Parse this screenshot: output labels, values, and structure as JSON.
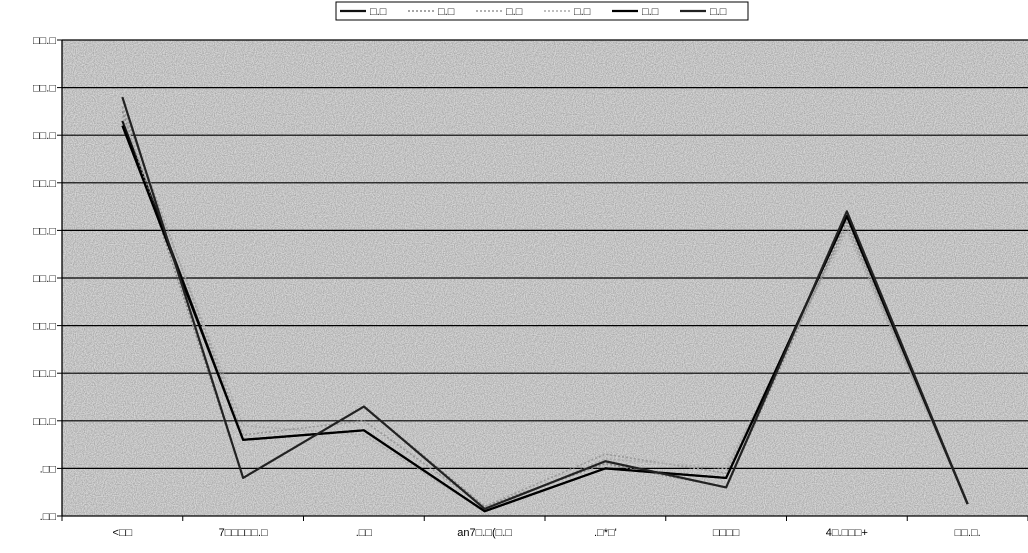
{
  "chart_data": {
    "type": "line",
    "title": "",
    "xlabel": "",
    "ylabel": "",
    "categories": [
      "<□□",
      "7□□□□□.□",
      ".□□",
      "an7□.□(□.□",
      ".□*□'",
      "□□□□",
      "4□.□□□+",
      "□□.□."
    ],
    "y_tick_labels": [
      ".□□",
      ".□□",
      "□□.□",
      "□□.□",
      "□□.□",
      "□□.□",
      "□□.□",
      "□□.□",
      "□□.□",
      "□□.□",
      "□□.□"
    ],
    "ylim": [
      0,
      10
    ],
    "grid": true,
    "legend": {
      "position": "top",
      "entries": [
        "□.□",
        "□.□",
        "□.□",
        "□.□",
        "□.□",
        "□.□"
      ]
    },
    "series": [
      {
        "name": "□.□",
        "color": "#111111",
        "style": "solid",
        "values": [
          8.3,
          1.6,
          1.8,
          0.1,
          1.0,
          0.8,
          6.3,
          0.25
        ]
      },
      {
        "name": "□.□",
        "color": "#888888",
        "style": "dotted",
        "values": [
          8.5,
          0.8,
          2.3,
          0.2,
          1.1,
          0.6,
          6.2,
          0.25
        ]
      },
      {
        "name": "□.□",
        "color": "#999999",
        "style": "dotted",
        "values": [
          8.6,
          1.7,
          2.0,
          0.2,
          1.3,
          0.9,
          6.1,
          0.25
        ]
      },
      {
        "name": "□.□",
        "color": "#aaaaaa",
        "style": "dotted",
        "values": [
          8.4,
          1.9,
          1.7,
          0.1,
          1.2,
          1.0,
          6.0,
          0.25
        ]
      },
      {
        "name": "□.□",
        "color": "#000000",
        "style": "solid",
        "values": [
          8.2,
          1.6,
          1.8,
          0.1,
          1.0,
          0.8,
          6.3,
          0.25
        ]
      },
      {
        "name": "□.□",
        "color": "#222222",
        "style": "solid",
        "values": [
          8.8,
          0.8,
          2.3,
          0.15,
          1.15,
          0.6,
          6.4,
          0.25
        ]
      }
    ]
  }
}
